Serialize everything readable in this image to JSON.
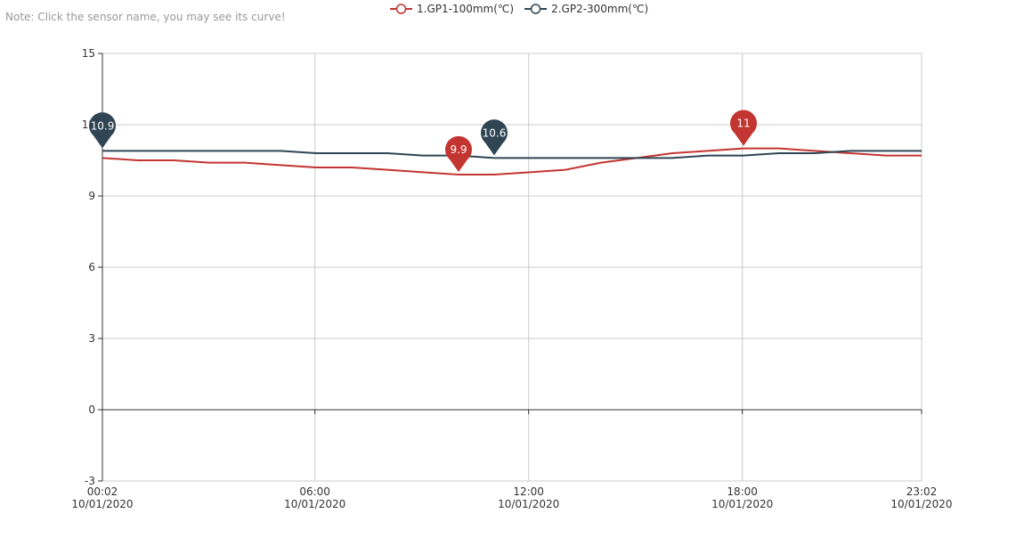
{
  "note": "Note: Click the sensor name, you may see its curve!",
  "chart_data": {
    "type": "line",
    "x": [
      "00:02",
      "01:02",
      "02:02",
      "03:02",
      "04:02",
      "05:02",
      "06:02",
      "07:02",
      "08:02",
      "09:02",
      "10:02",
      "11:02",
      "12:02",
      "13:02",
      "14:02",
      "15:02",
      "16:02",
      "17:02",
      "18:02",
      "19:02",
      "20:02",
      "21:02",
      "22:02",
      "23:02"
    ],
    "series": [
      {
        "name": "1.GP1-100mm(℃)",
        "color": "#c23531",
        "values": [
          10.6,
          10.5,
          10.5,
          10.4,
          10.4,
          10.3,
          10.2,
          10.2,
          10.1,
          10.0,
          9.9,
          9.9,
          10.0,
          10.1,
          10.4,
          10.6,
          10.8,
          10.9,
          11.0,
          11.0,
          10.9,
          10.8,
          10.7,
          10.7
        ],
        "mark_points": [
          {
            "x": "10:02",
            "value": 9.9
          },
          {
            "x": "18:02",
            "value": 11
          }
        ]
      },
      {
        "name": "2.GP2-300mm(℃)",
        "color": "#2f4554",
        "values": [
          10.9,
          10.9,
          10.9,
          10.9,
          10.9,
          10.9,
          10.8,
          10.8,
          10.8,
          10.7,
          10.7,
          10.6,
          10.6,
          10.6,
          10.6,
          10.6,
          10.6,
          10.7,
          10.7,
          10.8,
          10.8,
          10.9,
          10.9,
          10.9
        ],
        "mark_points": [
          {
            "x": "00:02",
            "value": 10.9
          },
          {
            "x": "11:02",
            "value": 10.6
          }
        ]
      }
    ],
    "xlim": [
      "00:02",
      "23:02"
    ],
    "xticks": [
      {
        "value": "00:02",
        "label": [
          "00:02",
          "10/01/2020"
        ]
      },
      {
        "value": "06:00",
        "label": [
          "06:00",
          "10/01/2020"
        ]
      },
      {
        "value": "12:00",
        "label": [
          "12:00",
          "10/01/2020"
        ]
      },
      {
        "value": "18:00",
        "label": [
          "18:00",
          "10/01/2020"
        ]
      },
      {
        "value": "23:02",
        "label": [
          "23:02",
          "10/01/2020"
        ]
      }
    ],
    "ylim": [
      -3,
      15
    ],
    "yticks": [
      -3,
      0,
      3,
      6,
      9,
      12,
      15
    ],
    "grid": true
  }
}
